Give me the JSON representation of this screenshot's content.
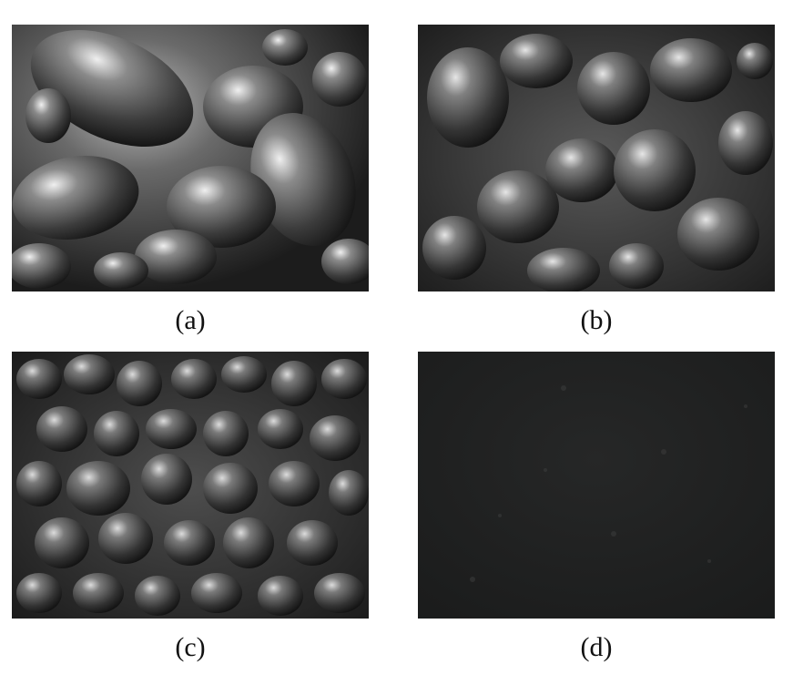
{
  "figure": {
    "panels": [
      {
        "id": "a",
        "caption": "(a)"
      },
      {
        "id": "b",
        "caption": "(b)"
      },
      {
        "id": "c",
        "caption": "(c)"
      },
      {
        "id": "d",
        "caption": "(d)"
      }
    ]
  },
  "colors": {
    "background": "#ffffff",
    "surface_dark": "#2a2a2a",
    "surface_mid": "#5a5a5a",
    "highlight": "#e8e8e8",
    "panel_d": "#1e1f1f"
  }
}
